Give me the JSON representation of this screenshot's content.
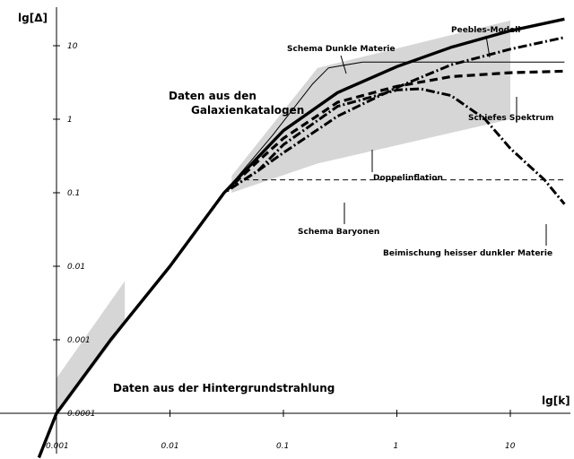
{
  "chart_data": {
    "type": "line",
    "title": "",
    "xlabel": "lg[k]",
    "ylabel": "lg[Δ]",
    "xscale": "log",
    "yscale": "log",
    "xlim": [
      0.0006,
      30
    ],
    "ylim": [
      4e-05,
      40
    ],
    "x_ticks": [
      "0.001",
      "0.01",
      "0.1",
      "1",
      "10"
    ],
    "y_ticks": [
      "0.0001",
      "0.001",
      "0.01",
      "0.1",
      "1",
      "10"
    ],
    "grid": false,
    "legend": "none",
    "bands": [
      {
        "label": "Daten aus der Hintergrundstrahlung",
        "upper": [
          [
            0.001,
            0.0003
          ],
          [
            0.004,
            0.0063
          ]
        ],
        "lower": [
          [
            0.001,
            9e-05
          ],
          [
            0.004,
            0.0016
          ]
        ]
      },
      {
        "label": "Daten aus den Galaxienkatalogen",
        "upper": [
          [
            0.035,
            0.17
          ],
          [
            0.2,
            5.0
          ],
          [
            10,
            22
          ]
        ],
        "lower": [
          [
            0.035,
            0.1
          ],
          [
            0.2,
            0.25
          ],
          [
            10,
            1.0
          ]
        ]
      }
    ],
    "series": [
      {
        "name": "Peebles-Modell",
        "style": "solid-thick",
        "points": [
          [
            0.0007,
            2.5e-05
          ],
          [
            0.001,
            0.0001
          ],
          [
            0.003,
            0.001
          ],
          [
            0.01,
            0.01
          ],
          [
            0.03,
            0.1
          ],
          [
            0.1,
            0.7
          ],
          [
            0.3,
            2.3
          ],
          [
            1,
            5.2
          ],
          [
            3,
            9.5
          ],
          [
            10,
            16
          ],
          [
            30,
            23
          ]
        ]
      },
      {
        "name": "Schema Dunkle Materie",
        "style": "solid-thin",
        "points": [
          [
            0.03,
            0.1
          ],
          [
            0.08,
            0.6
          ],
          [
            0.18,
            3.0
          ],
          [
            0.25,
            5.0
          ],
          [
            0.5,
            6.0
          ],
          [
            2,
            6.0
          ],
          [
            10,
            6.0
          ],
          [
            30,
            6.0
          ]
        ]
      },
      {
        "name": "Schiefes Spektrum",
        "style": "dashed-thick",
        "points": [
          [
            0.0007,
            2.5e-05
          ],
          [
            0.001,
            0.0001
          ],
          [
            0.003,
            0.001
          ],
          [
            0.01,
            0.01
          ],
          [
            0.03,
            0.1
          ],
          [
            0.06,
            0.27
          ],
          [
            0.1,
            0.55
          ],
          [
            0.3,
            1.7
          ],
          [
            1,
            2.8
          ],
          [
            3,
            3.8
          ],
          [
            10,
            4.3
          ],
          [
            30,
            4.5
          ]
        ]
      },
      {
        "name": "Doppelinflation",
        "style": "dashdot-thick",
        "points": [
          [
            0.003,
            0.001
          ],
          [
            0.01,
            0.01
          ],
          [
            0.03,
            0.1
          ],
          [
            0.06,
            0.2
          ],
          [
            0.1,
            0.35
          ],
          [
            0.3,
            1.1
          ],
          [
            1,
            2.7
          ],
          [
            3,
            5.5
          ],
          [
            10,
            9
          ],
          [
            30,
            13
          ]
        ]
      },
      {
        "name": "Schema Baryonen",
        "style": "dashed-thin",
        "points": [
          [
            0.045,
            0.15
          ],
          [
            1,
            0.15
          ],
          [
            10,
            0.15
          ],
          [
            30,
            0.15
          ]
        ]
      },
      {
        "name": "Beimischung heisser dunkler Materie",
        "style": "dashdot-thick",
        "points": [
          [
            0.003,
            0.001
          ],
          [
            0.01,
            0.01
          ],
          [
            0.03,
            0.1
          ],
          [
            0.06,
            0.2
          ],
          [
            0.1,
            0.45
          ],
          [
            0.3,
            1.5
          ],
          [
            1,
            2.5
          ],
          [
            1.6,
            2.6
          ],
          [
            3,
            2.1
          ],
          [
            6,
            1.0
          ],
          [
            10,
            0.4
          ],
          [
            20,
            0.15
          ],
          [
            30,
            0.07
          ]
        ]
      }
    ],
    "annotations": [
      {
        "text": "Schema Dunkle Materie"
      },
      {
        "text": "Peebles-Modell"
      },
      {
        "text": "Daten aus den"
      },
      {
        "text": "Galaxienkatalogen"
      },
      {
        "text": "Schiefes Spektrum"
      },
      {
        "text": "Doppelinflation"
      },
      {
        "text": "Schema Baryonen"
      },
      {
        "text": "Beimischung heisser dunkler Materie"
      },
      {
        "text": "Daten aus der Hintergrundstrahlung"
      }
    ]
  }
}
